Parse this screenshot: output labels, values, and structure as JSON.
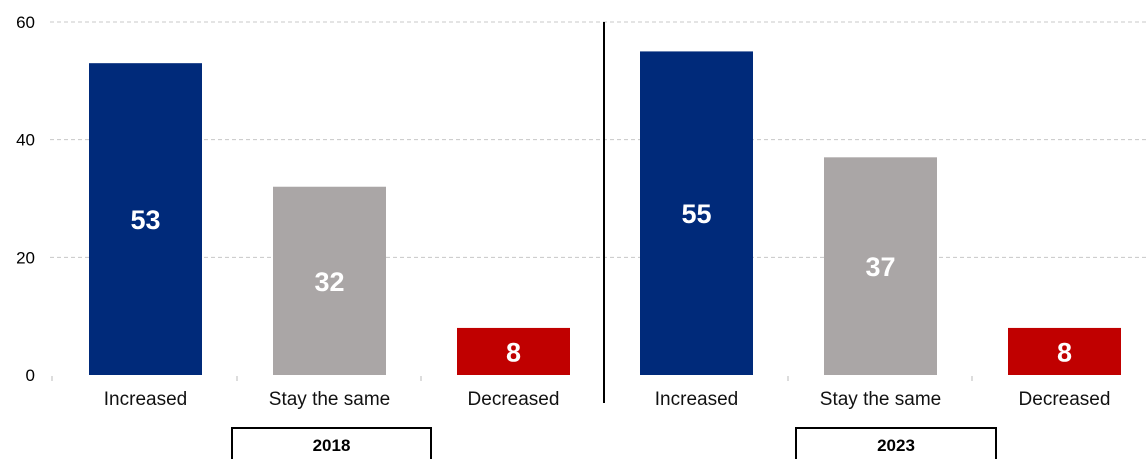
{
  "chart_data": {
    "type": "bar",
    "ylim": [
      0,
      60
    ],
    "yticks": [
      0,
      20,
      40,
      60
    ],
    "grid": true,
    "colors": {
      "increased": "#002a7a",
      "same": "#aaa6a6",
      "decreased": "#c00000"
    },
    "groups": [
      {
        "name": "2018",
        "bars": [
          {
            "category": "Increased",
            "value": 53,
            "label": "53",
            "color_key": "increased"
          },
          {
            "category": "Stay the same",
            "value": 32,
            "label": "32",
            "color_key": "same"
          },
          {
            "category": "Decreased",
            "value": 8,
            "label": "8",
            "color_key": "decreased"
          }
        ]
      },
      {
        "name": "2023",
        "bars": [
          {
            "category": "Increased",
            "value": 55,
            "label": "55",
            "color_key": "increased"
          },
          {
            "category": "Stay the same",
            "value": 37,
            "label": "37",
            "color_key": "same"
          },
          {
            "category": "Decreased",
            "value": 8,
            "label": "8",
            "color_key": "decreased"
          }
        ]
      }
    ]
  }
}
